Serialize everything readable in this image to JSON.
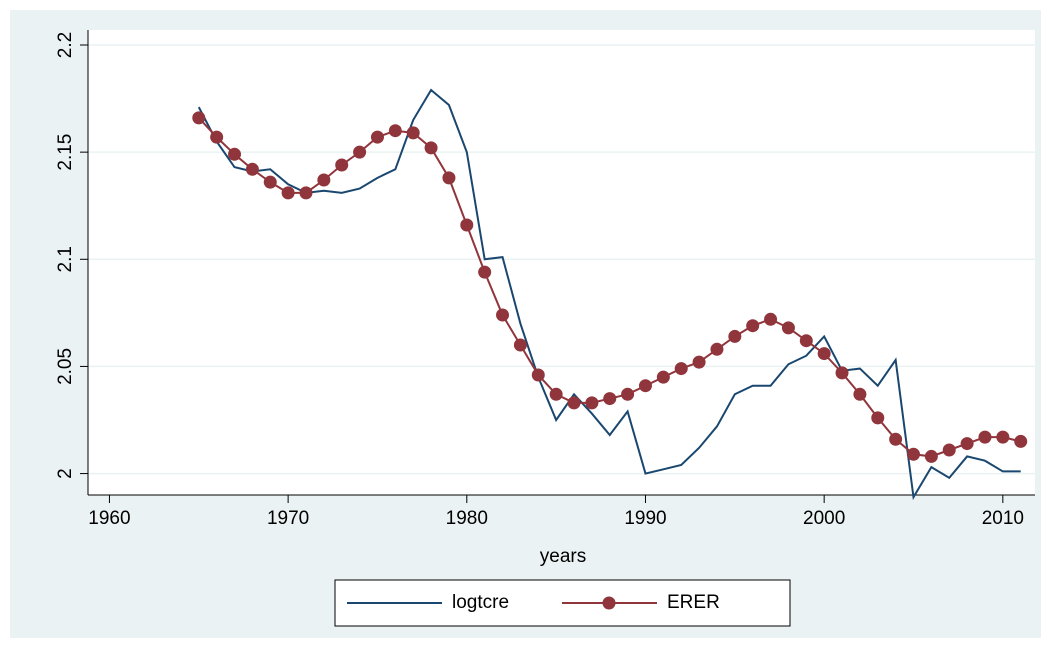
{
  "chart_data": {
    "type": "line",
    "x_label": "years",
    "x": [
      1965,
      1966,
      1967,
      1968,
      1969,
      1970,
      1971,
      1972,
      1973,
      1974,
      1975,
      1976,
      1977,
      1978,
      1979,
      1980,
      1981,
      1982,
      1983,
      1984,
      1985,
      1986,
      1987,
      1988,
      1989,
      1990,
      1991,
      1992,
      1993,
      1994,
      1995,
      1996,
      1997,
      1998,
      1999,
      2000,
      2001,
      2002,
      2003,
      2004,
      2005,
      2006,
      2007,
      2008,
      2009,
      2010,
      2011
    ],
    "series": [
      {
        "name": "logtcre",
        "color": "#1a476f",
        "marker": false,
        "values": [
          2.171,
          2.155,
          2.143,
          2.141,
          2.142,
          2.135,
          2.131,
          2.132,
          2.131,
          2.133,
          2.138,
          2.142,
          2.165,
          2.179,
          2.172,
          2.15,
          2.1,
          2.101,
          2.07,
          2.045,
          2.025,
          2.037,
          2.028,
          2.018,
          2.029,
          2.0,
          2.002,
          2.004,
          2.012,
          2.022,
          2.037,
          2.041,
          2.041,
          2.051,
          2.055,
          2.064,
          2.048,
          2.049,
          2.041,
          2.053,
          1.989,
          2.003,
          1.998,
          2.008,
          2.006,
          2.001,
          2.001
        ]
      },
      {
        "name": "ERER",
        "color": "#90353b",
        "marker": true,
        "values": [
          2.166,
          2.157,
          2.149,
          2.142,
          2.136,
          2.131,
          2.131,
          2.137,
          2.144,
          2.15,
          2.157,
          2.16,
          2.159,
          2.152,
          2.138,
          2.116,
          2.094,
          2.074,
          2.06,
          2.046,
          2.037,
          2.033,
          2.033,
          2.035,
          2.037,
          2.041,
          2.045,
          2.049,
          2.052,
          2.058,
          2.064,
          2.069,
          2.072,
          2.068,
          2.062,
          2.056,
          2.047,
          2.037,
          2.026,
          2.016,
          2.009,
          2.008,
          2.011,
          2.014,
          2.017,
          2.017,
          2.015
        ]
      }
    ],
    "xlim": [
      1958.8,
      2011.8
    ],
    "xticks": [
      1960,
      1970,
      1980,
      1990,
      2000,
      2010
    ],
    "ylim": [
      1.99,
      2.207
    ],
    "yticks": [
      2,
      2.05,
      2.1,
      2.15,
      2.2
    ],
    "grid": true,
    "legend": "bottom"
  }
}
